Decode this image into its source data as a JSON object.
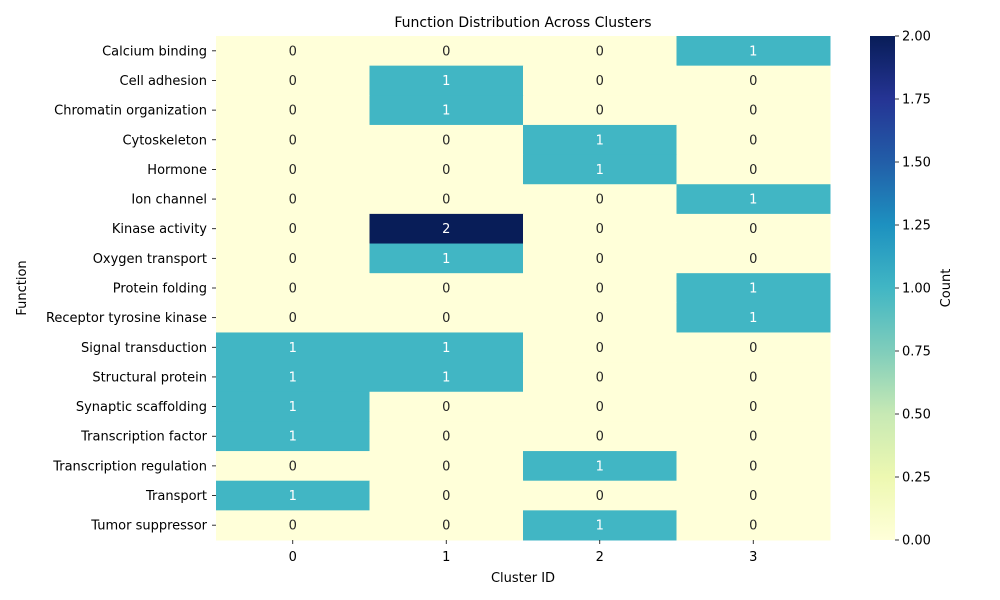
{
  "chart_data": {
    "type": "heatmap",
    "title": "Function Distribution Across Clusters",
    "xlabel": "Cluster ID",
    "ylabel": "Function",
    "x_categories": [
      "0",
      "1",
      "2",
      "3"
    ],
    "y_categories": [
      "Calcium binding",
      "Cell adhesion",
      "Chromatin organization",
      "Cytoskeleton",
      "Hormone",
      "Ion channel",
      "Kinase activity",
      "Oxygen transport",
      "Protein folding",
      "Receptor tyrosine kinase",
      "Signal transduction",
      "Structural protein",
      "Synaptic scaffolding",
      "Transcription factor",
      "Transcription regulation",
      "Transport",
      "Tumor suppressor"
    ],
    "values": [
      [
        0,
        0,
        0,
        1
      ],
      [
        0,
        1,
        0,
        0
      ],
      [
        0,
        1,
        0,
        0
      ],
      [
        0,
        0,
        1,
        0
      ],
      [
        0,
        0,
        1,
        0
      ],
      [
        0,
        0,
        0,
        1
      ],
      [
        0,
        2,
        0,
        0
      ],
      [
        0,
        1,
        0,
        0
      ],
      [
        0,
        0,
        0,
        1
      ],
      [
        0,
        0,
        0,
        1
      ],
      [
        1,
        1,
        0,
        0
      ],
      [
        1,
        1,
        0,
        0
      ],
      [
        1,
        0,
        0,
        0
      ],
      [
        1,
        0,
        0,
        0
      ],
      [
        0,
        0,
        1,
        0
      ],
      [
        1,
        0,
        0,
        0
      ],
      [
        0,
        0,
        1,
        0
      ]
    ],
    "colorbar": {
      "label": "Count",
      "range": [
        0,
        2
      ],
      "ticks": [
        "0.00",
        "0.25",
        "0.50",
        "0.75",
        "1.00",
        "1.25",
        "1.50",
        "1.75",
        "2.00"
      ],
      "colormap": "YlGnBu"
    },
    "colors": {
      "zero": "#ffffd9",
      "one": "#41b6c4",
      "two": "#081d58"
    }
  }
}
